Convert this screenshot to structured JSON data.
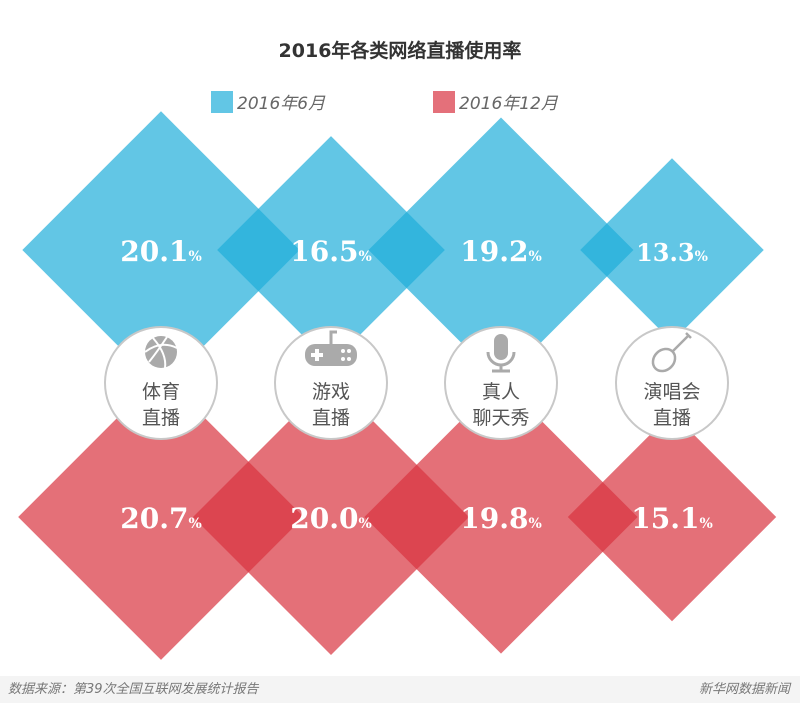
{
  "chart_data": {
    "type": "diamond-bar",
    "title": "2016年各类网络直播使用率",
    "categories": [
      [
        "体育",
        "直播"
      ],
      [
        "游戏",
        "直播"
      ],
      [
        "真人",
        "聊天秀"
      ],
      [
        "演唱会",
        "直播"
      ]
    ],
    "icons": [
      "basketball-icon",
      "gamepad-icon",
      "microphone-icon",
      "guitar-icon"
    ],
    "series": [
      {
        "name": "2016年6月",
        "color": "#62c6e5",
        "values": [
          20.1,
          16.5,
          19.2,
          13.3
        ]
      },
      {
        "name": "2016年12月",
        "color": "#e4707a",
        "values": [
          20.7,
          20.0,
          19.8,
          15.1
        ]
      }
    ],
    "unit": "%"
  },
  "footer": {
    "source": "数据来源：第39次全国互联网发展统计报告",
    "brand": "新华网数据新闻"
  }
}
